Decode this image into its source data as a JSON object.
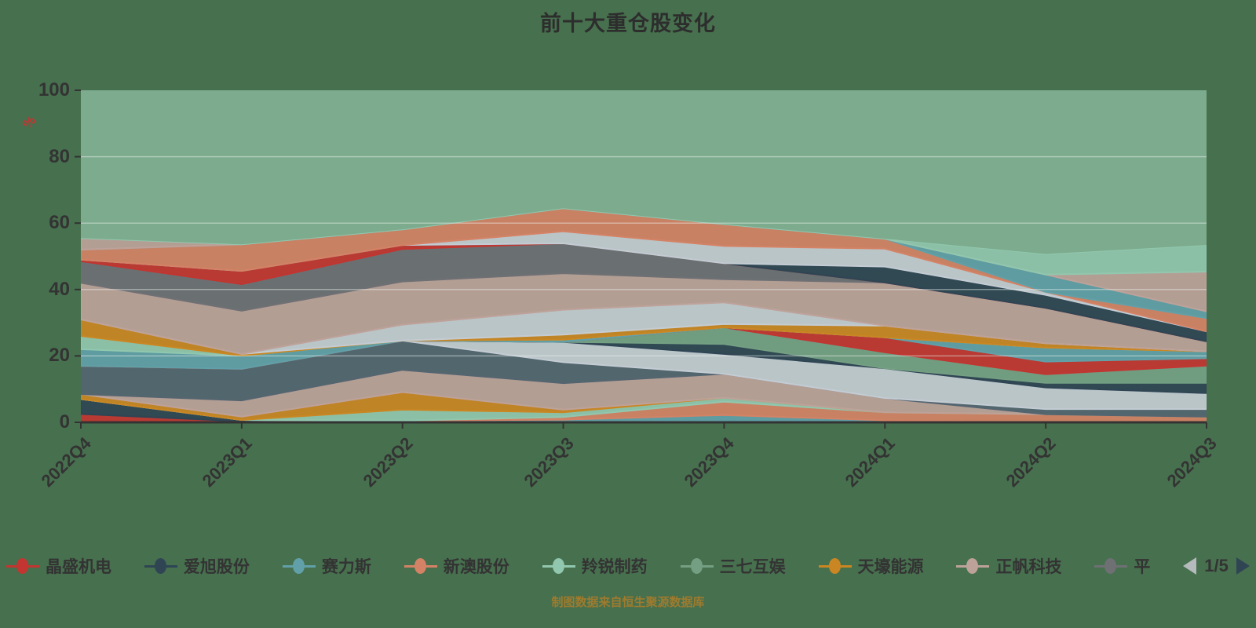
{
  "title": "前十大重仓股变化",
  "subtitle": "制图数据来自恒生聚源数据库",
  "y_axis": {
    "name": "%",
    "ticks": [
      "100",
      "80",
      "60",
      "40",
      "20",
      "0"
    ],
    "max": 100,
    "min": 0
  },
  "x_axis": {
    "categories": [
      "2022Q4",
      "2023Q1",
      "2023Q2",
      "2023Q3",
      "2023Q4",
      "2024Q1",
      "2024Q2",
      "2024Q3"
    ]
  },
  "legend": {
    "items": [
      {
        "label": "晶盛机电",
        "color": "#c23531"
      },
      {
        "label": "爱旭股份",
        "color": "#2f4554"
      },
      {
        "label": "赛力斯",
        "color": "#61a0a8"
      },
      {
        "label": "新澳股份",
        "color": "#d48265"
      },
      {
        "label": "羚锐制药",
        "color": "#91c7ae"
      },
      {
        "label": "三七互娱",
        "color": "#749f83"
      },
      {
        "label": "天壕能源",
        "color": "#ca8622"
      },
      {
        "label": "正帆科技",
        "color": "#bda29a"
      },
      {
        "label": "平",
        "color": "#6e7074"
      }
    ],
    "pager": {
      "text": "1/5",
      "prev_color": "#b5babc",
      "next_color": "#2f4554"
    }
  },
  "colors": {
    "page_background": "#47704e",
    "remainder_fill": "#7cab8d",
    "grid_line": "rgba(235,242,237,0.45)",
    "axis_line": "#333333",
    "axis_label": "#333333",
    "title_color": "#2d2d2d",
    "subtitle_color": "#9e7b2e",
    "y_axis_name_color": "#c23531"
  },
  "chart_data": {
    "type": "area",
    "stacked": true,
    "title": "前十大重仓股变化",
    "xlabel": "",
    "ylabel": "%",
    "ylim": [
      0,
      100
    ],
    "grid_lines": [
      20,
      40,
      60,
      80
    ],
    "legend_position": "bottom",
    "categories": [
      "2022Q4",
      "2023Q1",
      "2023Q2",
      "2023Q3",
      "2023Q4",
      "2024Q1",
      "2024Q2",
      "2024Q3"
    ],
    "remainder_fill_to": 100,
    "series": [
      {
        "name": "晶盛机电",
        "color": "#c23531",
        "values": [
          2.5,
          0.3,
          0,
          0,
          0,
          0,
          0,
          0
        ]
      },
      {
        "name": "爱旭股份",
        "color": "#2f4554",
        "values": [
          4.5,
          0.4,
          0,
          0,
          0,
          0,
          0,
          0
        ]
      },
      {
        "name": "赛力斯",
        "color": "#61a0a8",
        "values": [
          0,
          0,
          0.5,
          0.8,
          2.2,
          0.6,
          0,
          0
        ]
      },
      {
        "name": "新澳股份",
        "color": "#d48265",
        "values": [
          0,
          0,
          0,
          0.8,
          4.0,
          2.4,
          2.4,
          1.7
        ]
      },
      {
        "name": "羚锐制药",
        "color": "#91c7ae",
        "values": [
          0,
          0,
          3.3,
          1.4,
          1.2,
          0,
          0,
          0
        ]
      },
      {
        "name": "天壕能源",
        "color": "#ca8622",
        "values": [
          1.5,
          1.0,
          5.3,
          0.8,
          0,
          0,
          0,
          0
        ]
      },
      {
        "name": "正帆科技",
        "color": "#bda29a",
        "values": [
          0,
          4.9,
          6.7,
          8.0,
          7.2,
          4.3,
          0,
          0
        ]
      },
      {
        "name": "",
        "color": "#546570",
        "values": [
          8.5,
          9.5,
          8.8,
          6.3,
          0,
          0,
          1.6,
          2.3
        ]
      },
      {
        "name": "",
        "color": "#c4ccd3",
        "values": [
          0,
          0,
          0,
          6.1,
          6.0,
          9.0,
          6.5,
          4.8
        ]
      },
      {
        "name": "",
        "color": "#2f4554",
        "values": [
          0,
          0,
          0,
          0,
          3.0,
          0,
          1.4,
          3.1
        ]
      },
      {
        "name": "三七互娱",
        "color": "#749f83",
        "values": [
          0,
          0,
          0,
          0,
          5.0,
          4.8,
          2.6,
          5.2
        ]
      },
      {
        "name": "",
        "color": "#c23531",
        "values": [
          0,
          0,
          0,
          0,
          0,
          4.5,
          3.8,
          2.2
        ]
      },
      {
        "name": "",
        "color": "#61a0a8",
        "values": [
          5.0,
          4.0,
          0,
          0.7,
          0,
          0,
          4.2,
          2.1
        ]
      },
      {
        "name": "",
        "color": "#91c7ae",
        "values": [
          4.0,
          0,
          0,
          0,
          0,
          0,
          0,
          0
        ]
      },
      {
        "name": "",
        "color": "#ca8622",
        "values": [
          5.0,
          0.5,
          0,
          1.5,
          1.0,
          3.5,
          1.3,
          0
        ]
      },
      {
        "name": "",
        "color": "#c4ccd3",
        "values": [
          0,
          0,
          4.8,
          7.5,
          6.5,
          0,
          0,
          0
        ]
      },
      {
        "name": "",
        "color": "#bda29a",
        "values": [
          11.0,
          13.0,
          13.0,
          11.0,
          7.0,
          13.0,
          10.7,
          3.0
        ]
      },
      {
        "name": "平",
        "color": "#6e7074",
        "values": [
          6.5,
          8.0,
          9.8,
          9.0,
          4.8,
          0,
          0,
          0
        ]
      },
      {
        "name": "",
        "color": "#c23531",
        "values": [
          0.5,
          4.0,
          1.2,
          0,
          0,
          0,
          0,
          0
        ]
      },
      {
        "name": "",
        "color": "#2f4554",
        "values": [
          0,
          0,
          0,
          0,
          0,
          4.8,
          3.9,
          3.0
        ]
      },
      {
        "name": "",
        "color": "#c4ccd3",
        "values": [
          0,
          0,
          0,
          3.6,
          5.2,
          5.4,
          0.9,
          0
        ]
      },
      {
        "name": "",
        "color": "#d48265",
        "values": [
          3.0,
          8.0,
          4.7,
          7.0,
          6.6,
          3.0,
          0,
          4.0
        ]
      },
      {
        "name": "",
        "color": "#61a0a8",
        "values": [
          0,
          0,
          0,
          0,
          0,
          0,
          5.2,
          2.0
        ]
      },
      {
        "name": "",
        "color": "#bda29a",
        "values": [
          3.5,
          0,
          0,
          0,
          0,
          0,
          0,
          12.0
        ]
      },
      {
        "name": "",
        "color": "#91c7ae",
        "values": [
          0,
          0,
          0,
          0,
          0,
          0,
          6.2,
          8.0
        ]
      }
    ]
  }
}
